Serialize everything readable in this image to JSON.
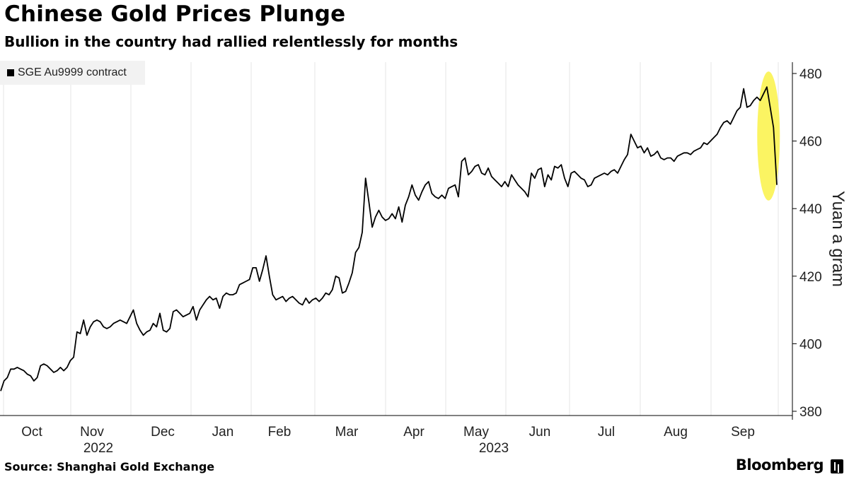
{
  "chart_data": {
    "type": "line",
    "title": "Chinese Gold Prices Plunge",
    "subtitle": "Bullion in the country had rallied relentlessly for months",
    "ylabel": "Yuan a gram",
    "ylim": [
      378,
      482
    ],
    "y_ticks": [
      380,
      400,
      420,
      440,
      460,
      480
    ],
    "x_tick_labels": [
      "Oct",
      "Nov",
      "Dec",
      "Jan",
      "Feb",
      "Mar",
      "Apr",
      "May",
      "Jun",
      "Jul",
      "Aug",
      "Sep"
    ],
    "x_year_labels": [
      "2022",
      "2023"
    ],
    "legend_position": "top-left",
    "grid": "vertical",
    "series": [
      {
        "name": "SGE Au9999 contract",
        "color": "#000000",
        "values": [
          386,
          389,
          390,
          392.5,
          392.5,
          393,
          392.5,
          392,
          391,
          390.5,
          389,
          390,
          393.5,
          394,
          393.5,
          392.5,
          391.5,
          392,
          393,
          392,
          393,
          395,
          396,
          403.5,
          403,
          407,
          402.5,
          405,
          406.5,
          407,
          406.5,
          405,
          404.5,
          405,
          406,
          406.5,
          407,
          406.5,
          406,
          408,
          410,
          406,
          404,
          402.5,
          403.5,
          404,
          406,
          405,
          409,
          404,
          403.5,
          404.5,
          409.5,
          410,
          409,
          408,
          408.5,
          409,
          411,
          407,
          410,
          411.5,
          413,
          414,
          413,
          413.5,
          410.5,
          414,
          415,
          414.5,
          414.5,
          415,
          417.5,
          418,
          418.5,
          419,
          422.5,
          422.5,
          418.5,
          422,
          426,
          420,
          414.5,
          413,
          413.5,
          414,
          412.5,
          413.5,
          414,
          413,
          412,
          411.5,
          413.5,
          412,
          413,
          413.5,
          412.5,
          413.5,
          415,
          414.5,
          416,
          420,
          419.5,
          415,
          415.5,
          418,
          421,
          427,
          428.5,
          433,
          449,
          442,
          434.5,
          437.5,
          439.5,
          437.5,
          436.5,
          437,
          438.5,
          437,
          440.5,
          436,
          441,
          443.5,
          447,
          444,
          442.5,
          445,
          447,
          448,
          444.5,
          443.5,
          443,
          444,
          443,
          446,
          446.5,
          447,
          443.5,
          454,
          455,
          450,
          451,
          452.5,
          453,
          450.5,
          450,
          452,
          449.5,
          448.5,
          447.5,
          446.5,
          448,
          446.5,
          450,
          448.5,
          447,
          446,
          445,
          443.5,
          450.5,
          449,
          451.5,
          452,
          446.5,
          450,
          448.5,
          452.5,
          452,
          453,
          449,
          446.5,
          450.5,
          451,
          450,
          449,
          448.5,
          446.5,
          447,
          449,
          449.5,
          450,
          450.5,
          450,
          451,
          451.5,
          450.5,
          452.5,
          454.5,
          456,
          462,
          460,
          458,
          458.5,
          456.5,
          458,
          455.5,
          456,
          457,
          455,
          454.5,
          455,
          455,
          454,
          455.5,
          456,
          456.5,
          456.5,
          456,
          457,
          457.5,
          458,
          459.5,
          459,
          460,
          461,
          462,
          464,
          465.5,
          466,
          465,
          467,
          469,
          470,
          475.5,
          470,
          470.5,
          472,
          473,
          472,
          474,
          476,
          470,
          464,
          447
        ]
      }
    ]
  },
  "source_text": "Source: Shanghai Gold Exchange",
  "brand_text": "Bloomberg"
}
